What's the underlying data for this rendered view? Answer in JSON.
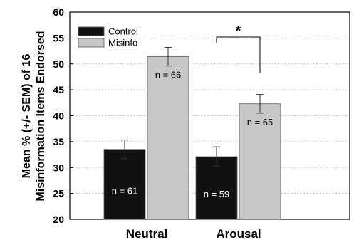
{
  "chart_data": {
    "type": "bar",
    "categories": [
      "Neutral",
      "Arousal"
    ],
    "series": [
      {
        "name": "Control",
        "values": [
          33.5,
          32.1
        ],
        "errors": [
          1.8,
          1.9
        ],
        "labels": [
          "n = 61",
          "n = 59"
        ],
        "color": "#111111",
        "label_color": "#ffffff"
      },
      {
        "name": "Misinfo",
        "values": [
          51.4,
          42.3
        ],
        "errors": [
          1.8,
          1.8
        ],
        "labels": [
          "n = 66",
          "n = 65"
        ],
        "color": "#c8c8c8",
        "label_color": "#000000"
      }
    ],
    "ylabel_lines": [
      "Mean % (+/- SEM) of 16",
      "Misinformation Items Endorsed"
    ],
    "ylim": [
      20,
      60
    ],
    "yticks": [
      20,
      25,
      30,
      35,
      40,
      45,
      50,
      55,
      60
    ],
    "grid": true,
    "legend_position": "top-left",
    "significance": {
      "label": "*",
      "between": [
        [
          0,
          1
        ],
        [
          1,
          1
        ]
      ]
    }
  }
}
